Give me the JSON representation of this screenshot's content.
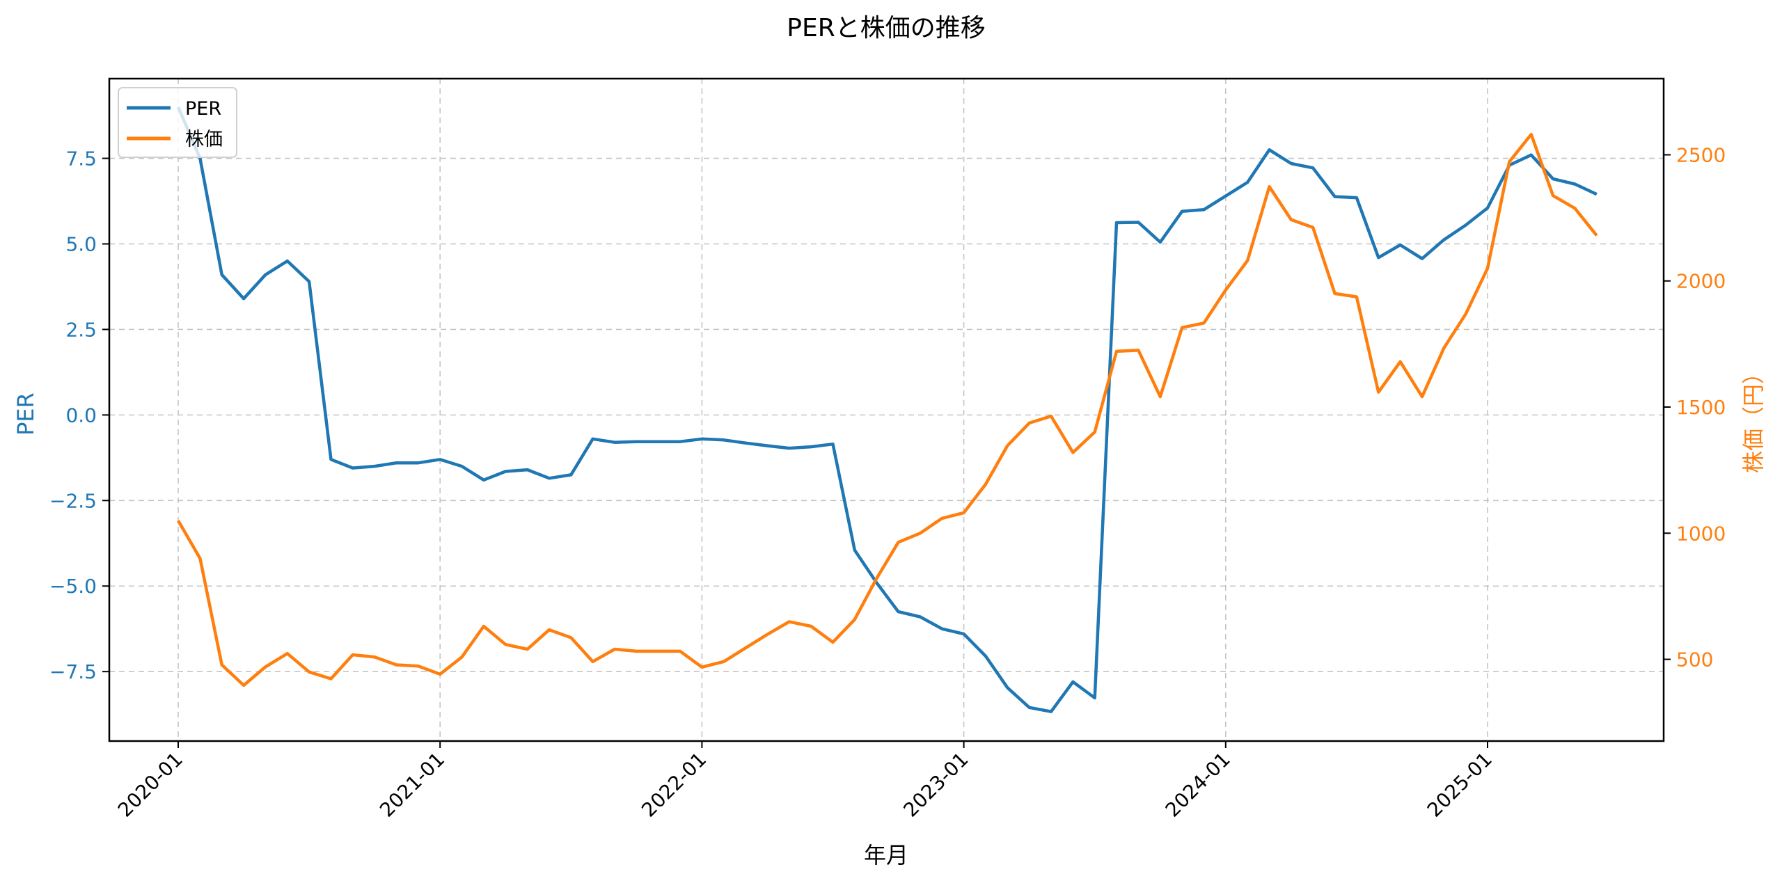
{
  "chart_data": {
    "type": "line",
    "title": "PERと株価の推移",
    "xlabel": "年月",
    "ylabel_left": "PER",
    "ylabel_right": "株価（円）",
    "x_tick_labels": [
      "2020-01",
      "2021-01",
      "2022-01",
      "2023-01",
      "2024-01",
      "2025-01"
    ],
    "y_left_ticks": [
      "−7.5",
      "−5.0",
      "−2.5",
      "0.0",
      "2.5",
      "5.0",
      "7.5"
    ],
    "y_left_tick_values": [
      -7.5,
      -5.0,
      -2.5,
      0.0,
      2.5,
      5.0,
      7.5
    ],
    "y_right_ticks": [
      "500",
      "1000",
      "1500",
      "2000",
      "2500"
    ],
    "y_right_tick_values": [
      500,
      1000,
      1500,
      2000,
      2500
    ],
    "ylim_left": [
      -9.53,
      9.83
    ],
    "ylim_right": [
      176,
      2802
    ],
    "grid": true,
    "grid_style": "dashed",
    "legend_position": "upper left",
    "x": [
      "2020-01",
      "2020-02",
      "2020-03",
      "2020-04",
      "2020-05",
      "2020-06",
      "2020-07",
      "2020-08",
      "2020-09",
      "2020-10",
      "2020-11",
      "2020-12",
      "2021-01",
      "2021-02",
      "2021-03",
      "2021-04",
      "2021-05",
      "2021-06",
      "2021-07",
      "2021-08",
      "2021-09",
      "2021-10",
      "2021-11",
      "2021-12",
      "2022-01",
      "2022-02",
      "2022-03",
      "2022-04",
      "2022-05",
      "2022-06",
      "2022-07",
      "2022-08",
      "2022-09",
      "2022-10",
      "2022-11",
      "2022-12",
      "2023-01",
      "2023-02",
      "2023-03",
      "2023-04",
      "2023-05",
      "2023-06",
      "2023-07",
      "2023-08",
      "2023-09",
      "2023-10",
      "2023-11",
      "2023-12",
      "2024-01",
      "2024-02",
      "2024-03",
      "2024-04",
      "2024-05",
      "2024-06",
      "2024-07",
      "2024-08",
      "2024-09",
      "2024-10",
      "2024-11",
      "2024-12",
      "2025-01",
      "2025-02",
      "2025-03",
      "2025-04",
      "2025-05",
      "2025-06"
    ],
    "series": [
      {
        "name": "PER",
        "axis": "left",
        "color": "#1f77b4",
        "values": [
          9.0,
          7.5,
          4.1,
          3.4,
          4.1,
          4.5,
          3.9,
          -1.3,
          -1.55,
          -1.5,
          -1.4,
          -1.4,
          -1.3,
          -1.5,
          -1.9,
          -1.65,
          -1.6,
          -1.85,
          -1.75,
          -0.7,
          -0.8,
          -0.78,
          -0.78,
          -0.78,
          -0.7,
          -0.73,
          -0.82,
          -0.9,
          -0.97,
          -0.93,
          -0.85,
          -3.95,
          -4.9,
          -5.75,
          -5.9,
          -6.25,
          -6.4,
          -7.05,
          -7.97,
          -8.55,
          -8.67,
          -7.8,
          -8.27,
          5.62,
          5.63,
          5.05,
          5.95,
          6.0,
          6.4,
          6.8,
          7.75,
          7.35,
          7.22,
          6.38,
          6.35,
          4.6,
          4.97,
          4.57,
          5.12,
          5.55,
          6.05,
          7.3,
          7.6,
          6.9,
          6.75,
          6.45
        ]
      },
      {
        "name": "株価",
        "axis": "right",
        "color": "#ff7f0e",
        "values": [
          1050,
          900,
          478,
          397,
          470,
          523,
          450,
          423,
          518,
          509,
          478,
          473,
          441,
          509,
          631,
          559,
          540,
          617,
          586,
          491,
          540,
          532,
          532,
          532,
          469,
          491,
          545,
          599,
          649,
          631,
          568,
          658,
          820,
          964,
          1000,
          1059,
          1081,
          1194,
          1347,
          1437,
          1464,
          1320,
          1401,
          1721,
          1725,
          1541,
          1815,
          1833,
          1964,
          2081,
          2374,
          2243,
          2212,
          1950,
          1937,
          1559,
          1680,
          1541,
          1734,
          1869,
          2050,
          2473,
          2581,
          2338,
          2288,
          2180
        ]
      }
    ],
    "legend": [
      {
        "label": "PER",
        "color": "#1f77b4"
      },
      {
        "label": "株価",
        "color": "#ff7f0e"
      }
    ]
  },
  "colors": {
    "left_axis": "#1f77b4",
    "right_axis": "#ff7f0e",
    "grid": "#b0b0b0"
  }
}
